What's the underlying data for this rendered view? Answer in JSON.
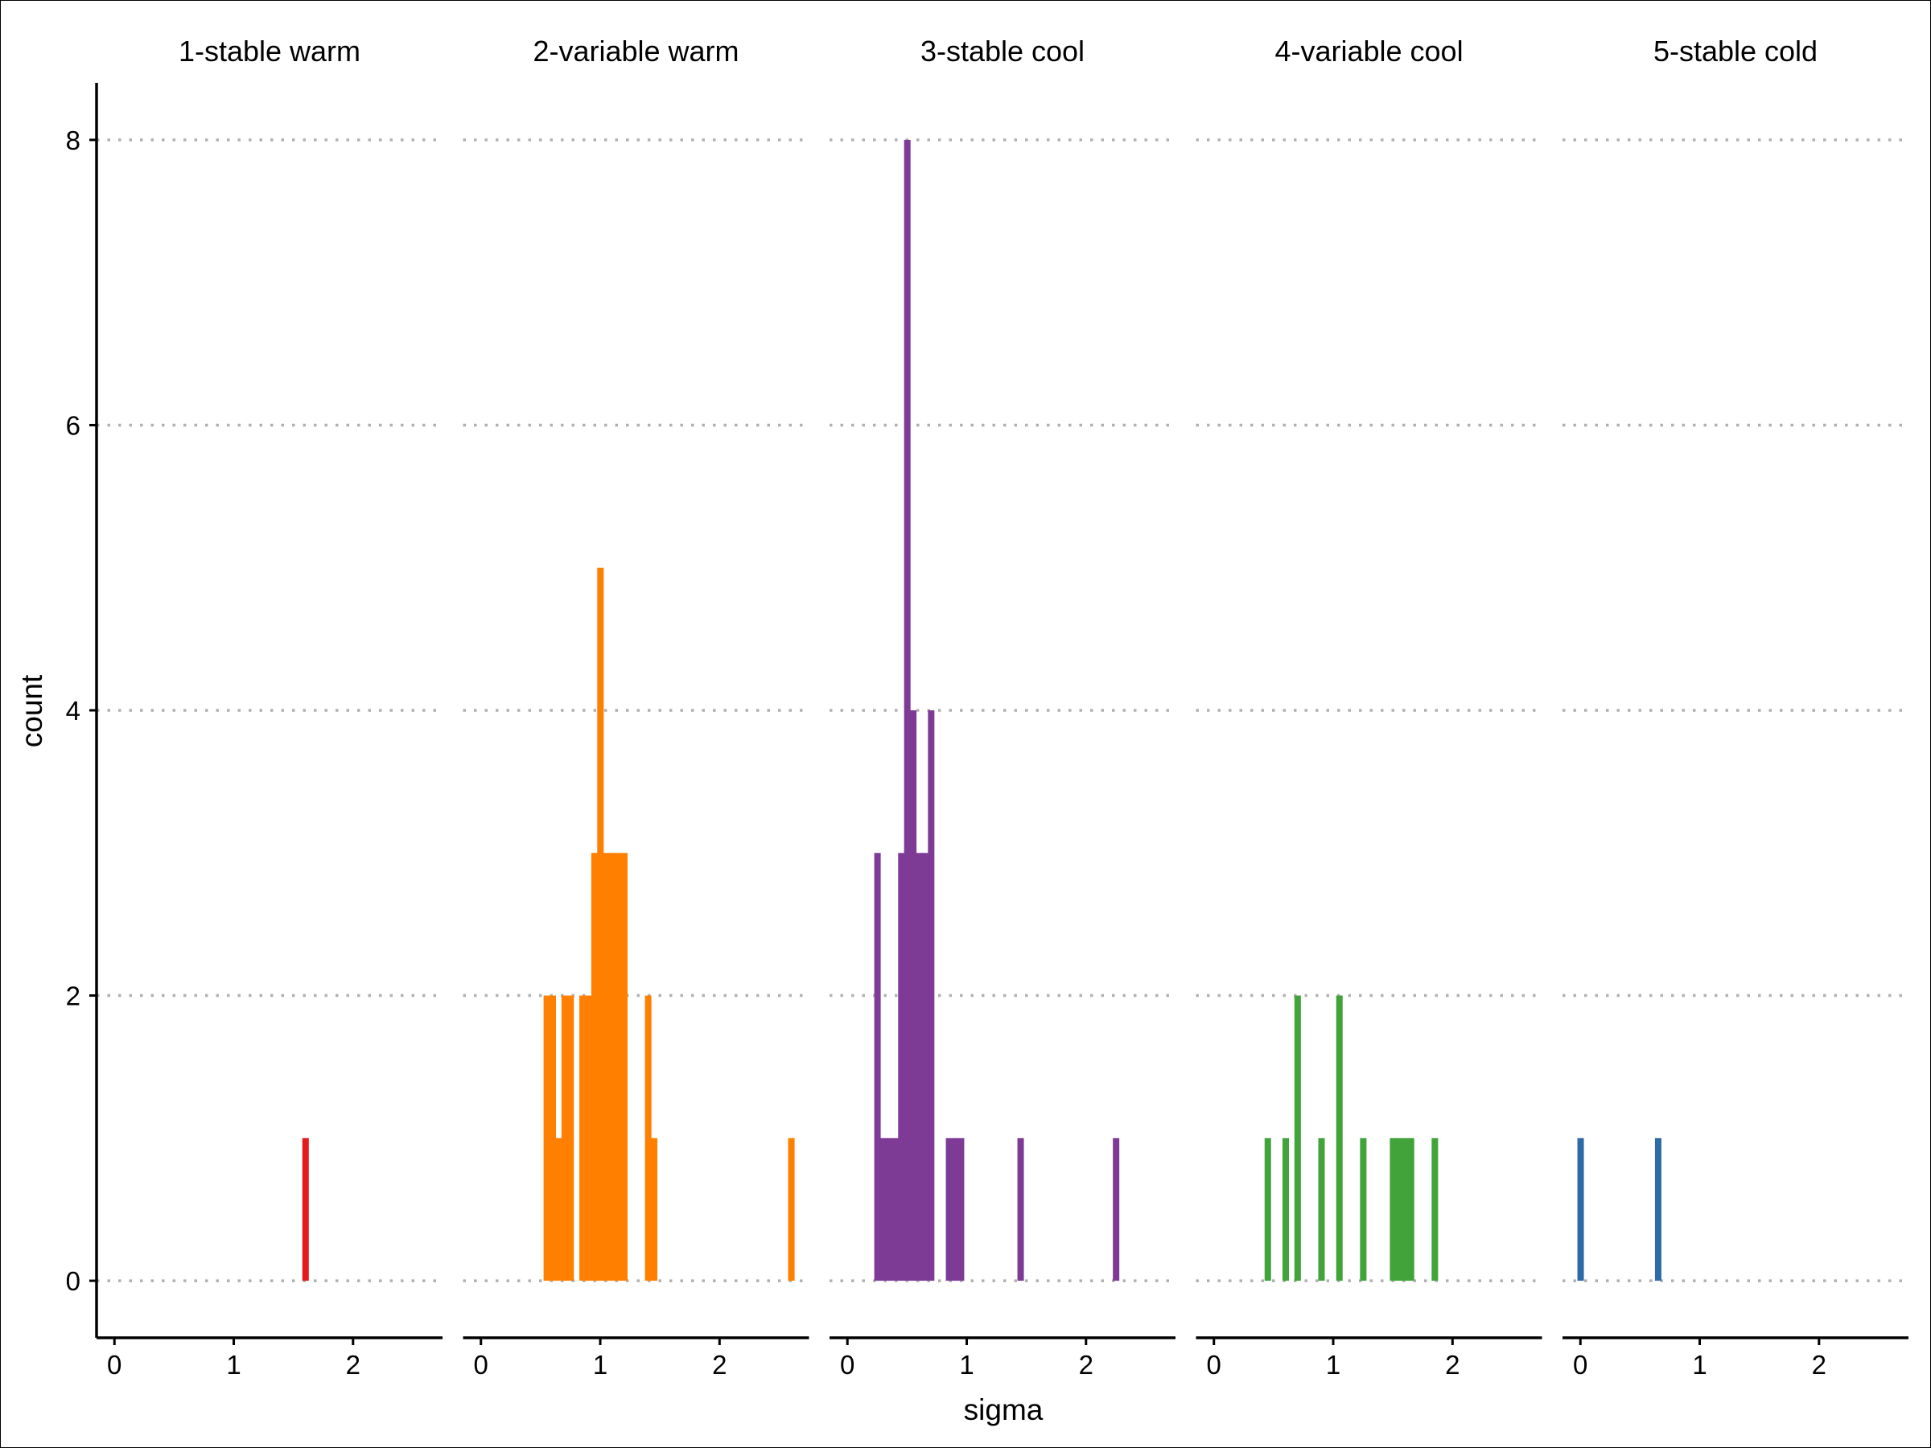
{
  "chart_data": {
    "type": "bar",
    "xlabel": "sigma",
    "ylabel": "count",
    "ylim": [
      -0.4,
      8.4
    ],
    "yticks": [
      0,
      2,
      4,
      6,
      8
    ],
    "xlim": [
      -0.15,
      2.75
    ],
    "xticks": [
      0,
      1,
      2
    ],
    "bin_width": 0.05,
    "grid": "horizontal dotted",
    "panels": [
      {
        "label": "1-stable warm",
        "color": "#e41a1c",
        "bins": [
          {
            "x": 1.6,
            "count": 1
          }
        ]
      },
      {
        "label": "2-variable warm",
        "color": "#ff7f00",
        "bins": [
          {
            "x": 0.55,
            "count": 2
          },
          {
            "x": 0.6,
            "count": 2
          },
          {
            "x": 0.65,
            "count": 1
          },
          {
            "x": 0.7,
            "count": 2
          },
          {
            "x": 0.75,
            "count": 2
          },
          {
            "x": 0.85,
            "count": 2
          },
          {
            "x": 0.9,
            "count": 2
          },
          {
            "x": 0.95,
            "count": 3
          },
          {
            "x": 1.0,
            "count": 5
          },
          {
            "x": 1.05,
            "count": 3
          },
          {
            "x": 1.1,
            "count": 3
          },
          {
            "x": 1.15,
            "count": 3
          },
          {
            "x": 1.2,
            "count": 3
          },
          {
            "x": 1.4,
            "count": 2
          },
          {
            "x": 1.45,
            "count": 1
          },
          {
            "x": 2.6,
            "count": 1
          }
        ]
      },
      {
        "label": "3-stable cool",
        "color": "#7e3b96",
        "bins": [
          {
            "x": 0.25,
            "count": 3
          },
          {
            "x": 0.3,
            "count": 1
          },
          {
            "x": 0.35,
            "count": 1
          },
          {
            "x": 0.4,
            "count": 1
          },
          {
            "x": 0.45,
            "count": 3
          },
          {
            "x": 0.5,
            "count": 8
          },
          {
            "x": 0.55,
            "count": 4
          },
          {
            "x": 0.6,
            "count": 3
          },
          {
            "x": 0.65,
            "count": 3
          },
          {
            "x": 0.7,
            "count": 4
          },
          {
            "x": 0.85,
            "count": 1
          },
          {
            "x": 0.9,
            "count": 1
          },
          {
            "x": 0.95,
            "count": 1
          },
          {
            "x": 1.45,
            "count": 1
          },
          {
            "x": 2.25,
            "count": 1
          }
        ]
      },
      {
        "label": "4-variable cool",
        "color": "#41a33a",
        "bins": [
          {
            "x": 0.45,
            "count": 1
          },
          {
            "x": 0.6,
            "count": 1
          },
          {
            "x": 0.7,
            "count": 2
          },
          {
            "x": 0.9,
            "count": 1
          },
          {
            "x": 1.05,
            "count": 2
          },
          {
            "x": 1.25,
            "count": 1
          },
          {
            "x": 1.5,
            "count": 1
          },
          {
            "x": 1.55,
            "count": 1
          },
          {
            "x": 1.6,
            "count": 1
          },
          {
            "x": 1.65,
            "count": 1
          },
          {
            "x": 1.85,
            "count": 1
          }
        ]
      },
      {
        "label": "5-stable cold",
        "color": "#2e6aa6",
        "bins": [
          {
            "x": 0.0,
            "count": 1
          },
          {
            "x": 0.65,
            "count": 1
          }
        ]
      }
    ]
  }
}
